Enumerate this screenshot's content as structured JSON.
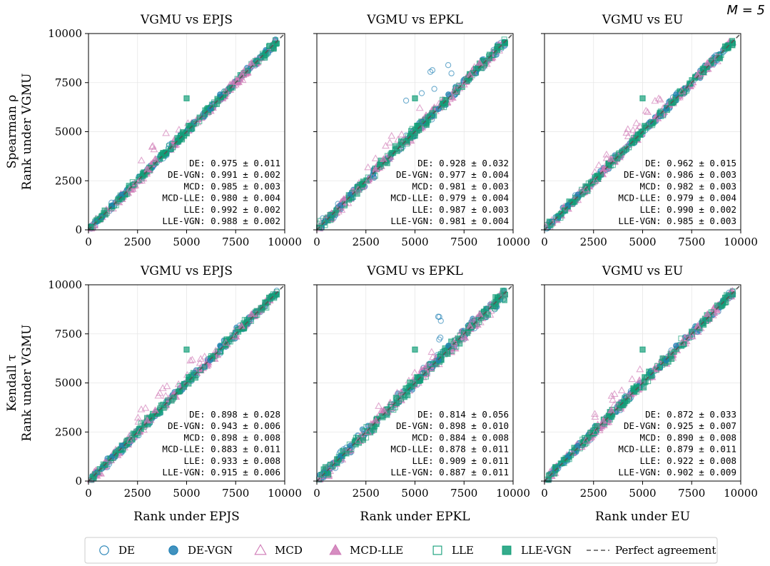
{
  "figure": {
    "annotation": "M = 5",
    "colors": {
      "DE": "#1f7fb4",
      "MCD": "#cf79b6",
      "LLE": "#129e78",
      "reference": "#555555"
    }
  },
  "legend": {
    "entries": [
      {
        "label": "DE",
        "marker": "circle",
        "filled": false,
        "color": "#1f7fb4"
      },
      {
        "label": "DE-VGN",
        "marker": "circle",
        "filled": true,
        "color": "#1f7fb4"
      },
      {
        "label": "MCD",
        "marker": "triangle",
        "filled": false,
        "color": "#cf79b6"
      },
      {
        "label": "MCD-LLE",
        "marker": "triangle",
        "filled": true,
        "color": "#cf79b6"
      },
      {
        "label": "LLE",
        "marker": "square",
        "filled": false,
        "color": "#129e78"
      },
      {
        "label": "LLE-VGN",
        "marker": "square",
        "filled": true,
        "color": "#129e78"
      },
      {
        "label": "Perfect agreement",
        "marker": "dashed-line",
        "color": "#555555"
      }
    ]
  },
  "chart_data": {
    "type": "scatter",
    "xlim": [
      0,
      10000
    ],
    "ylim": [
      0,
      10000
    ],
    "ticks": [
      0,
      2500,
      5000,
      7500,
      10000
    ],
    "tick_labels": [
      "0",
      "2500",
      "5000",
      "7500",
      "10000"
    ],
    "row_labels": [
      {
        "line1": "Spearman ρ",
        "line2": "Rank under VGMU"
      },
      {
        "line1": "Kendall τ",
        "line2": "Rank under VGMU"
      }
    ],
    "xlabels": [
      "Rank under EPJS",
      "Rank under EPKL",
      "Rank under EU"
    ],
    "panels": [
      {
        "title": "VGMU vs EPJS",
        "row": 0,
        "col": 0,
        "stats": [
          {
            "method": "DE",
            "value": "0.975 ± 0.011"
          },
          {
            "method": "DE-VGN",
            "value": "0.991 ± 0.002"
          },
          {
            "method": "MCD",
            "value": "0.985 ± 0.003"
          },
          {
            "method": "MCD-LLE",
            "value": "0.980 ± 0.004"
          },
          {
            "method": "LLE",
            "value": "0.992 ± 0.002"
          },
          {
            "method": "LLE-VGN",
            "value": "0.988 ± 0.002"
          }
        ]
      },
      {
        "title": "VGMU vs EPKL",
        "row": 0,
        "col": 1,
        "stats": [
          {
            "method": "DE",
            "value": "0.928 ± 0.032"
          },
          {
            "method": "DE-VGN",
            "value": "0.977 ± 0.004"
          },
          {
            "method": "MCD",
            "value": "0.981 ± 0.003"
          },
          {
            "method": "MCD-LLE",
            "value": "0.979 ± 0.004"
          },
          {
            "method": "LLE",
            "value": "0.987 ± 0.003"
          },
          {
            "method": "LLE-VGN",
            "value": "0.981 ± 0.004"
          }
        ]
      },
      {
        "title": "VGMU vs EU",
        "row": 0,
        "col": 2,
        "stats": [
          {
            "method": "DE",
            "value": "0.962 ± 0.015"
          },
          {
            "method": "DE-VGN",
            "value": "0.986 ± 0.003"
          },
          {
            "method": "MCD",
            "value": "0.982 ± 0.003"
          },
          {
            "method": "MCD-LLE",
            "value": "0.979 ± 0.004"
          },
          {
            "method": "LLE",
            "value": "0.990 ± 0.002"
          },
          {
            "method": "LLE-VGN",
            "value": "0.985 ± 0.003"
          }
        ]
      },
      {
        "title": "VGMU vs EPJS",
        "row": 1,
        "col": 0,
        "stats": [
          {
            "method": "DE",
            "value": "0.898 ± 0.028"
          },
          {
            "method": "DE-VGN",
            "value": "0.943 ± 0.006"
          },
          {
            "method": "MCD",
            "value": "0.898 ± 0.008"
          },
          {
            "method": "MCD-LLE",
            "value": "0.883 ± 0.011"
          },
          {
            "method": "LLE",
            "value": "0.933 ± 0.008"
          },
          {
            "method": "LLE-VGN",
            "value": "0.915 ± 0.006"
          }
        ]
      },
      {
        "title": "VGMU vs EPKL",
        "row": 1,
        "col": 1,
        "stats": [
          {
            "method": "DE",
            "value": "0.814 ± 0.056"
          },
          {
            "method": "DE-VGN",
            "value": "0.898 ± 0.010"
          },
          {
            "method": "MCD",
            "value": "0.884 ± 0.008"
          },
          {
            "method": "MCD-LLE",
            "value": "0.878 ± 0.011"
          },
          {
            "method": "LLE",
            "value": "0.909 ± 0.011"
          },
          {
            "method": "LLE-VGN",
            "value": "0.887 ± 0.011"
          }
        ]
      },
      {
        "title": "VGMU vs EU",
        "row": 1,
        "col": 2,
        "stats": [
          {
            "method": "DE",
            "value": "0.872 ± 0.033"
          },
          {
            "method": "DE-VGN",
            "value": "0.925 ± 0.007"
          },
          {
            "method": "MCD",
            "value": "0.890 ± 0.008"
          },
          {
            "method": "MCD-LLE",
            "value": "0.879 ± 0.011"
          },
          {
            "method": "LLE",
            "value": "0.922 ± 0.008"
          },
          {
            "method": "LLE-VGN",
            "value": "0.902 ± 0.009"
          }
        ]
      }
    ],
    "series_points": [
      [
        400,
        420
      ],
      [
        1200,
        1250
      ],
      [
        2100,
        2050
      ],
      [
        3000,
        3080
      ],
      [
        3800,
        3900
      ],
      [
        4600,
        4550
      ],
      [
        5400,
        5500
      ],
      [
        6200,
        6150
      ],
      [
        7000,
        7050
      ],
      [
        7800,
        7900
      ],
      [
        8500,
        8600
      ],
      [
        9200,
        9350
      ],
      [
        700,
        650
      ],
      [
        1700,
        1800
      ],
      [
        2600,
        2500
      ],
      [
        3400,
        3600
      ],
      [
        4300,
        4200
      ],
      [
        5100,
        5300
      ],
      [
        5900,
        5800
      ],
      [
        6700,
        6900
      ],
      [
        7500,
        7400
      ],
      [
        8300,
        8500
      ],
      [
        9000,
        8900
      ],
      [
        9600,
        9500
      ]
    ]
  }
}
